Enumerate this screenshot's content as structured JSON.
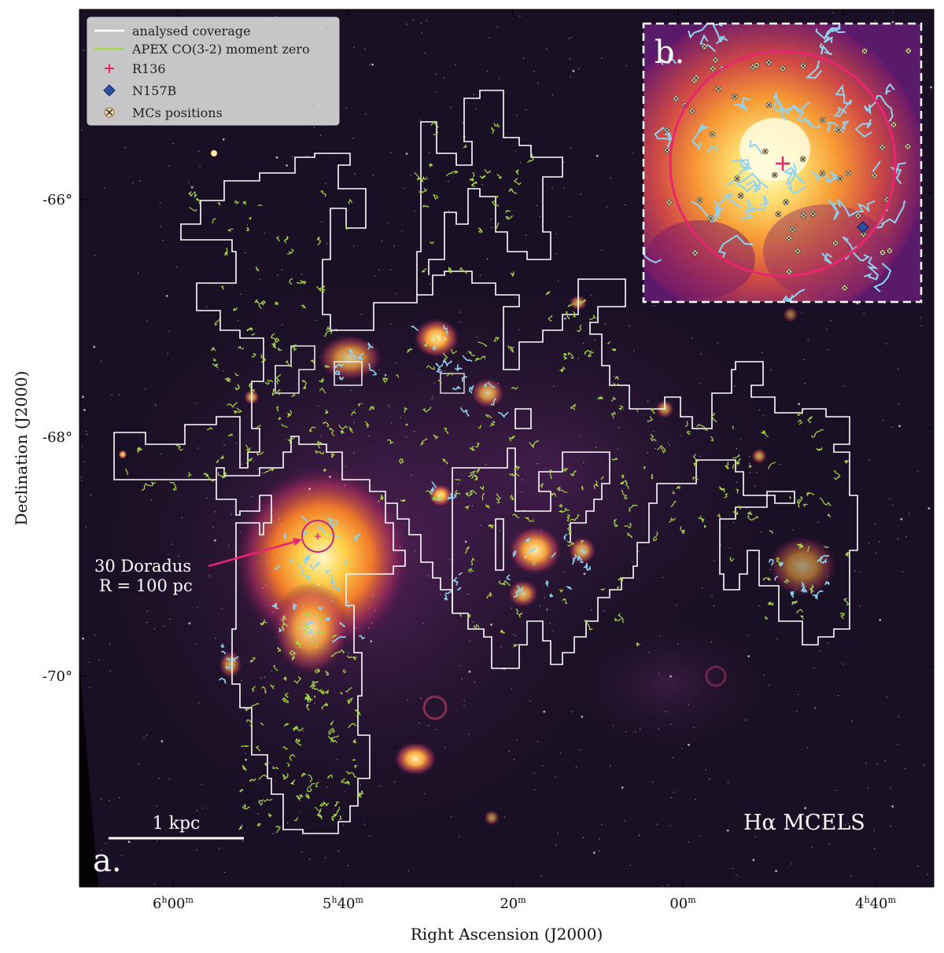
{
  "figure": {
    "legend": {
      "items": [
        {
          "label": "analysed coverage",
          "marker": "line",
          "color": "#ffffff"
        },
        {
          "label": "APEX CO(3-2) moment zero",
          "marker": "line",
          "color": "#a6d64a"
        },
        {
          "label": "R136",
          "marker": "plus",
          "color": "#e8266f"
        },
        {
          "label": "N157B",
          "marker": "diamond",
          "color": "#2b4ea2"
        },
        {
          "label": "MCs positions",
          "marker": "x-circle",
          "color": "#f3d9a8"
        }
      ]
    },
    "panel_a_label": "a.",
    "panel_b_label": "b.",
    "image_label": "Hα MCELS",
    "scalebar_label": "1 kpc",
    "annotation_line1": "30 Doradus",
    "annotation_line2": "R = 100 pc",
    "x_axis_label": "Right Ascension (J2000)",
    "y_axis_label": "Declination (J2000)",
    "x_ticks": [
      "6h00m",
      "5h40m",
      "20m",
      "00m",
      "4h40m"
    ],
    "y_ticks": [
      "-66°",
      "-68°",
      "-70°"
    ],
    "colors": {
      "background": "#1a1025",
      "coverage": "#ffffff",
      "co_contours": "#a6d64a",
      "cyan_contours": "#8fd3f0",
      "r136": "#e8266f",
      "circle": "#e8266f"
    }
  }
}
